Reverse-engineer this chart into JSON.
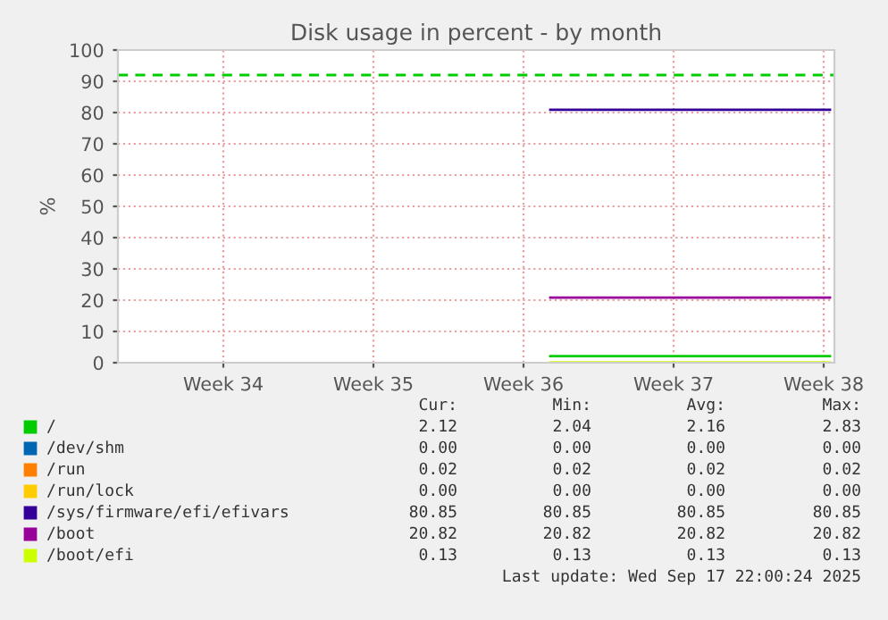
{
  "chart_data": {
    "type": "line",
    "title": "Disk usage in percent - by month",
    "ylabel": "%",
    "xlim": [
      "2025-08-13T02:00",
      "2025-09-15T12:00"
    ],
    "xticks": [
      {
        "value": "2025-08-18",
        "label": "Week 34"
      },
      {
        "value": "2025-08-25",
        "label": "Week 35"
      },
      {
        "value": "2025-09-01",
        "label": "Week 36"
      },
      {
        "value": "2025-09-08",
        "label": "Week 37"
      },
      {
        "value": "2025-09-15",
        "label": "Week 38"
      }
    ],
    "ylim": [
      0,
      100
    ],
    "yticks": [
      0,
      10,
      20,
      30,
      40,
      50,
      60,
      70,
      80,
      90,
      100
    ],
    "grid": true,
    "legend": "bottom",
    "marker": "none",
    "line_style": "solid",
    "x": [
      "2025-09-02T06:00",
      "2025-09-15T07:00"
    ],
    "series": [
      {
        "name": "/",
        "color": "#00cc00",
        "values": [
          2.1,
          2.1
        ]
      },
      {
        "name": "/dev/shm",
        "color": "#0066b3",
        "values": [
          null,
          null
        ]
      },
      {
        "name": "/run",
        "color": "#ff8000",
        "values": [
          null,
          null
        ]
      },
      {
        "name": "/run/lock",
        "color": "#ffcc00",
        "values": [
          null,
          null
        ]
      },
      {
        "name": "/sys/firmware/efi/efivars",
        "color": "#330099",
        "values": [
          80.9,
          80.9
        ]
      },
      {
        "name": "/boot",
        "color": "#990099",
        "values": [
          20.8,
          20.8
        ]
      },
      {
        "name": "/boot/efi",
        "color": "#ccff00",
        "values": [
          0.1,
          0.1
        ]
      }
    ],
    "ref_lines": [
      {
        "axis": "y",
        "value": 92,
        "color": "#00cc00",
        "line_style": "dashed"
      }
    ],
    "annotations": [
      "Cur:",
      "Min:",
      "Avg:",
      "Max:",
      "2.12",
      "2.04",
      "2.16",
      "2.83",
      "0.00",
      "0.00",
      "0.00",
      "0.00",
      "0.02",
      "0.02",
      "0.02",
      "0.02",
      "0.00",
      "0.00",
      "0.00",
      "0.00",
      "80.85",
      "80.85",
      "80.85",
      "80.85",
      "20.82",
      "20.82",
      "20.82",
      "20.82",
      "0.13",
      "0.13",
      "0.13",
      "0.13",
      "Last update: Wed Sep 17 22:00:24 2025"
    ]
  }
}
